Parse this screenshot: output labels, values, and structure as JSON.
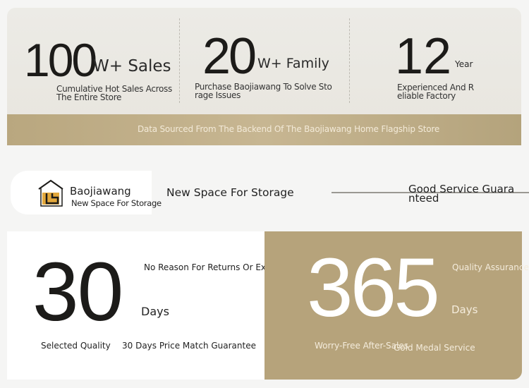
{
  "stats": [
    {
      "number": "100",
      "unit": "W+ Sales",
      "desc_lines": [
        "Cumulative Hot Sales Across",
        "The Entire Store"
      ]
    },
    {
      "number": "20",
      "unit": "W+ Family",
      "desc_lines": [
        "Purchase Baojiawang To Solve Sto",
        "rage Issues"
      ]
    },
    {
      "number": "12",
      "unit": "Year",
      "desc_lines": [
        "Experienced And R",
        "eliable Factory"
      ]
    }
  ],
  "source_note": "Data Sourced From The Backend Of The Baojiawang Home Flagship Store",
  "brand": {
    "name": "Baojiawang",
    "tagline": "New Space For Storage",
    "logo_icon": "house-icon"
  },
  "slogan": "New Space For Storage",
  "service_lines": [
    "Good Service Guara",
    "nteed"
  ],
  "returns": {
    "number": "30",
    "unit": "Days",
    "title": "No Reason For Returns Or Exchanges",
    "features": [
      "Selected Quality",
      "30 Days Price Match Guarantee"
    ]
  },
  "warranty": {
    "number": "365",
    "unit": "Days",
    "title": "Quality Assurance",
    "features": [
      "Worry-Free After-Sales",
      "Gold Medal Service"
    ]
  },
  "colors": {
    "gold": "#b6a37b",
    "band": "#c2b08a",
    "dark": "#1c1b19"
  }
}
